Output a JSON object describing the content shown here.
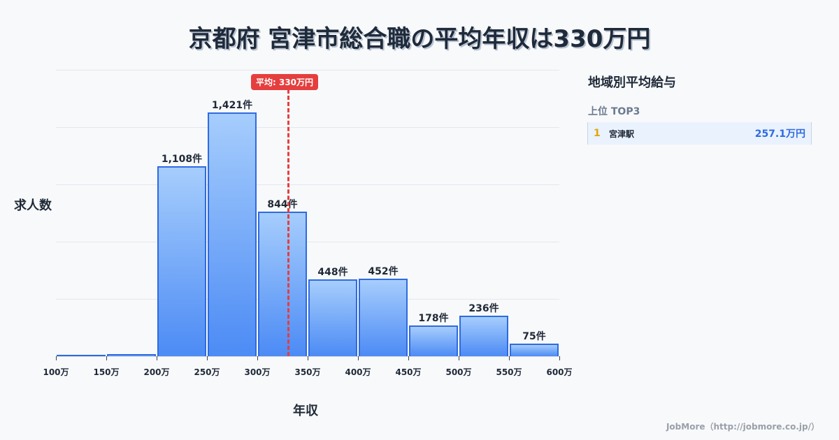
{
  "title": "京都府 宮津市総合職の平均年収は330万円",
  "chart_data": {
    "type": "bar",
    "title": "京都府 宮津市総合職の平均年収は330万円",
    "xlabel": "年収",
    "ylabel": "求人数",
    "categories": [
      "100-150万",
      "150-200万",
      "200-250万",
      "250-300万",
      "300-350万",
      "350-400万",
      "400-450万",
      "450-500万",
      "500-550万",
      "550-600万"
    ],
    "values": [
      8,
      12,
      1108,
      1421,
      844,
      448,
      452,
      178,
      236,
      75
    ],
    "value_labels": [
      "",
      "",
      "1,108件",
      "1,421件",
      "844件",
      "448件",
      "452件",
      "178件",
      "236件",
      "75件"
    ],
    "x_ticks": [
      "100万",
      "150万",
      "200万",
      "250万",
      "300万",
      "350万",
      "400万",
      "450万",
      "500万",
      "550万",
      "600万"
    ],
    "ylim": [
      0,
      1670
    ],
    "grid": true,
    "mean_line": {
      "value": 330,
      "label": "平均: 330万円",
      "color": "#e53e3e"
    },
    "bar_color": "#4c8bf5"
  },
  "axis": {
    "ylabel": "求人数",
    "xlabel": "年収"
  },
  "mean_badge": "平均: 330万円",
  "side_panel": {
    "title": "地域別平均給与",
    "subtitle": "上位 TOP3",
    "ranks": [
      {
        "rank": "1",
        "name": "宮津駅",
        "value": "257.1万円"
      }
    ]
  },
  "footer": "JobMore（http://jobmore.co.jp/）"
}
